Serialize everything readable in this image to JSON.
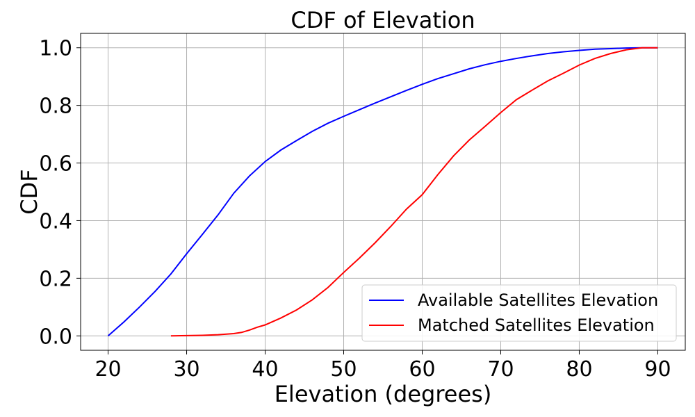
{
  "chart_data": {
    "type": "line",
    "title": "CDF of Elevation",
    "xlabel": "Elevation (degrees)",
    "ylabel": "CDF",
    "xlim": [
      16.5,
      93.5
    ],
    "ylim": [
      -0.05,
      1.05
    ],
    "xticks": [
      20,
      30,
      40,
      50,
      60,
      70,
      80,
      90
    ],
    "xtick_labels": [
      "20",
      "30",
      "40",
      "50",
      "60",
      "70",
      "80",
      "90"
    ],
    "yticks": [
      0.0,
      0.2,
      0.4,
      0.6,
      0.8,
      1.0
    ],
    "ytick_labels": [
      "0.0",
      "0.2",
      "0.4",
      "0.6",
      "0.8",
      "1.0"
    ],
    "grid": true,
    "legend_position": "lower-right",
    "series": [
      {
        "name": "Available Satellites Elevation",
        "color": "#0000ff",
        "x": [
          20,
          22,
          24,
          26,
          28,
          30,
          32,
          34,
          36,
          38,
          40,
          42,
          44,
          46,
          48,
          50,
          52,
          54,
          56,
          58,
          60,
          62,
          64,
          66,
          68,
          70,
          72,
          74,
          76,
          78,
          80,
          82,
          84,
          86,
          88,
          90
        ],
        "y": [
          0.0,
          0.048,
          0.1,
          0.155,
          0.215,
          0.285,
          0.352,
          0.42,
          0.495,
          0.555,
          0.605,
          0.645,
          0.678,
          0.71,
          0.738,
          0.762,
          0.785,
          0.808,
          0.83,
          0.852,
          0.873,
          0.893,
          0.91,
          0.927,
          0.941,
          0.953,
          0.963,
          0.972,
          0.98,
          0.986,
          0.991,
          0.995,
          0.997,
          0.999,
          1.0,
          1.0
        ]
      },
      {
        "name": "Matched Satellites Elevation",
        "color": "#ff0000",
        "x": [
          28,
          30,
          32,
          34,
          36,
          37,
          38,
          39,
          40,
          41,
          42,
          44,
          46,
          48,
          50,
          52,
          54,
          56,
          58,
          60,
          62,
          64,
          66,
          68,
          70,
          72,
          74,
          76,
          78,
          80,
          82,
          84,
          86,
          88,
          90
        ],
        "y": [
          0.0,
          0.001,
          0.002,
          0.004,
          0.008,
          0.012,
          0.02,
          0.03,
          0.038,
          0.05,
          0.062,
          0.09,
          0.125,
          0.168,
          0.22,
          0.27,
          0.323,
          0.38,
          0.44,
          0.49,
          0.56,
          0.625,
          0.68,
          0.727,
          0.775,
          0.82,
          0.853,
          0.885,
          0.912,
          0.94,
          0.963,
          0.98,
          0.993,
          1.0,
          1.0
        ]
      }
    ]
  }
}
